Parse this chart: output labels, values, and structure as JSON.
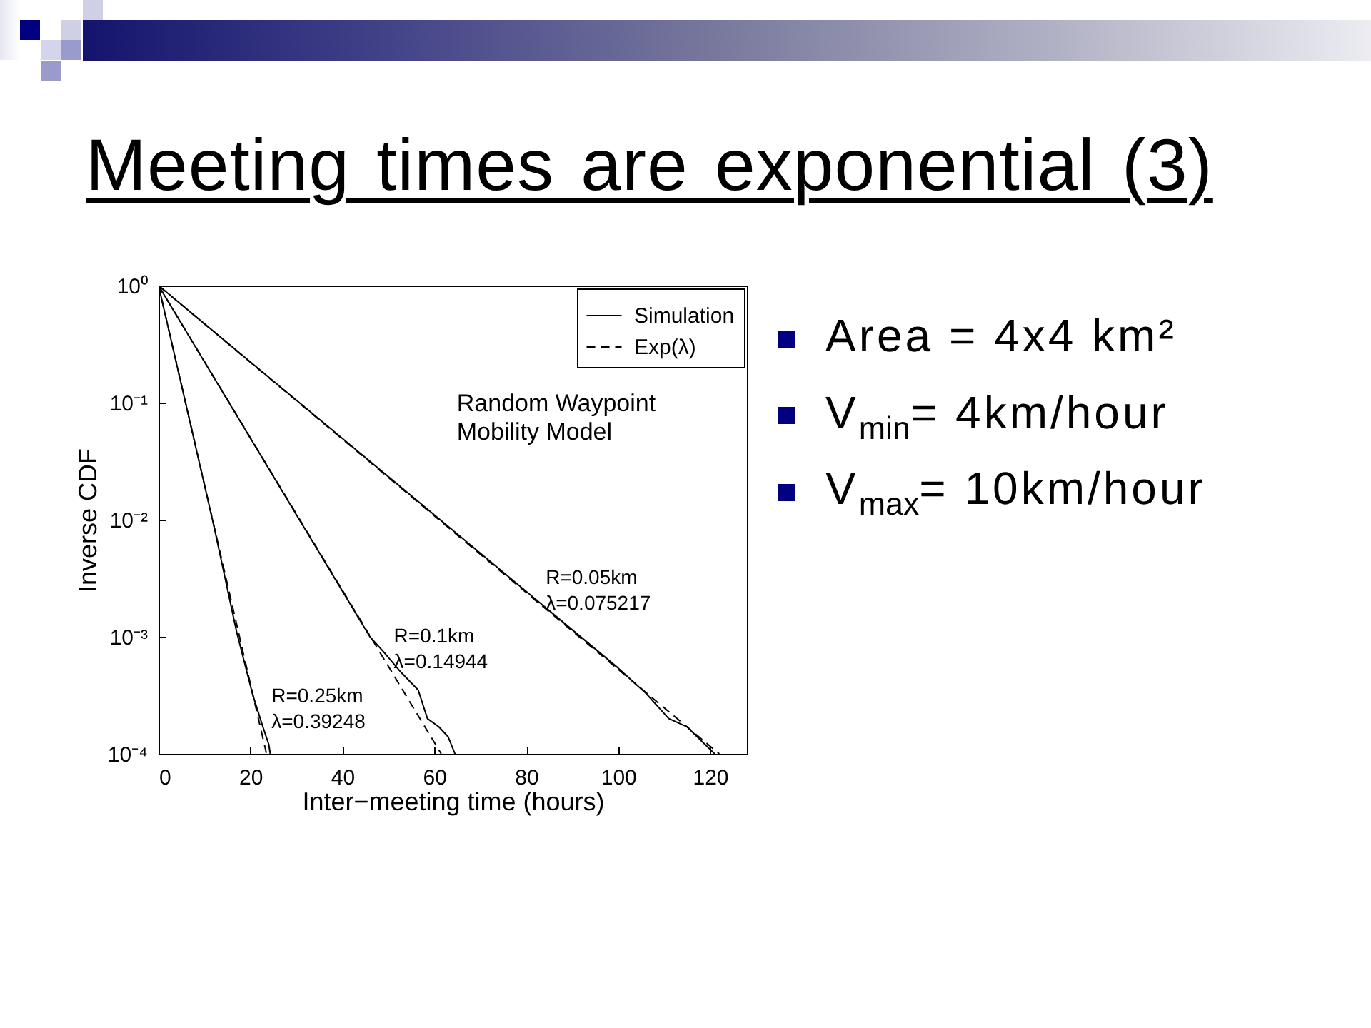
{
  "chart_data": {
    "type": "line",
    "title": "Meeting times are exponential (3)",
    "xlabel": "Inter−meeting time (hours)",
    "ylabel": "Inverse CDF",
    "log": "y",
    "legend": "top right",
    "xlim": [
      0,
      128
    ],
    "xticks": [
      0,
      20,
      40,
      60,
      80,
      100,
      120
    ],
    "ylim": [
      0.0001,
      1
    ],
    "yticks": [
      {
        "value": 0.0001,
        "label": "10⁻⁴"
      },
      {
        "value": 0.001,
        "label": "10⁻³"
      },
      {
        "value": 0.01,
        "label": "10⁻²"
      },
      {
        "value": 0.1,
        "label": "10⁻¹"
      },
      {
        "value": 1,
        "label": "10⁰"
      }
    ],
    "series": [
      {
        "name": "Simulation",
        "color": "#000000",
        "line_style": "solid",
        "x": [
          0,
          60,
          100,
          106,
          111,
          115,
          118,
          121
        ],
        "values": [
          1,
          0.011,
          0.00054,
          0.00033,
          0.0002,
          0.00017,
          0.00013,
          0.0001
        ]
      },
      {
        "name": "Exp(λ)",
        "color": "#000000",
        "line_style": "dashed",
        "x": [
          0,
          122
        ],
        "values": [
          1,
          0.0001
        ]
      },
      {
        "color": "#000000",
        "line_style": "solid",
        "x": [
          0,
          31,
          46,
          49,
          52.5,
          56.5,
          58.5,
          61,
          63,
          64.5
        ],
        "values": [
          1,
          0.0095,
          0.001,
          0.00074,
          0.00051,
          0.00035,
          0.0002,
          0.00017,
          0.00014,
          0.0001
        ]
      },
      {
        "color": "#000000",
        "line_style": "dashed",
        "x": [
          0,
          61.5
        ],
        "values": [
          1,
          0.0001
        ]
      },
      {
        "color": "#000000",
        "line_style": "solid",
        "x": [
          0,
          12,
          17,
          20.5,
          22.5,
          24,
          24.3
        ],
        "values": [
          1,
          0.009,
          0.0011,
          0.00032,
          0.00018,
          0.00012,
          0.0001
        ]
      },
      {
        "color": "#000000",
        "line_style": "dashed",
        "x": [
          0,
          23.5
        ],
        "values": [
          1,
          0.0001
        ]
      }
    ],
    "annotations": [
      "Random Waypoint\nMobility Model",
      "R=0.05km\nλ=0.075217",
      "R=0.1km\nλ=0.14944",
      "R=0.25km\nλ=0.39248",
      "Area = 4x4 km²",
      "V$_{min}$= 4km/hour",
      "V$_{max}$= 10km/hour"
    ]
  }
}
